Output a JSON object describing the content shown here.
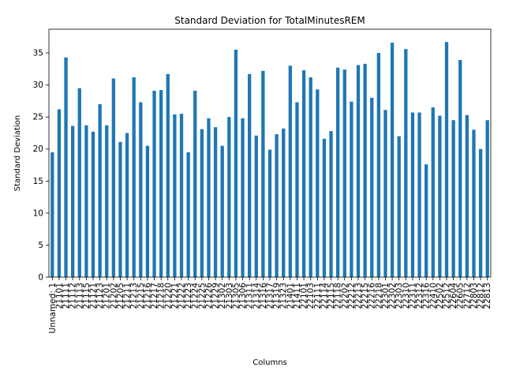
{
  "chart_data": {
    "type": "bar",
    "title": "Standard Deviation for TotalMinutesREM",
    "xlabel": "Columns",
    "ylabel": "Standard Deviation",
    "color": "#1f77b4",
    "categories": [
      "Unnamed: 1",
      "21101",
      "21111",
      "21112",
      "21113",
      "21115",
      "21121",
      "21123",
      "21201",
      "21202",
      "21205",
      "21211",
      "21213",
      "21215",
      "21216",
      "21217",
      "21218",
      "21220",
      "21221",
      "21222",
      "21223",
      "21224",
      "21225",
      "21226",
      "21229",
      "21302",
      "21303",
      "21305",
      "21306",
      "21311",
      "21314",
      "21316",
      "21317",
      "21319",
      "21323",
      "21401",
      "21411",
      "22101",
      "22103",
      "22111",
      "22114",
      "22115",
      "22118",
      "22202",
      "22212",
      "22213",
      "22215",
      "22216",
      "22218",
      "22301",
      "22302",
      "22303",
      "22310",
      "22311",
      "22312",
      "22316",
      "22410",
      "22502",
      "22512",
      "22604",
      "22605",
      "22712",
      "22803",
      "22812",
      "22813"
    ],
    "values": [
      19.5,
      26.2,
      34.3,
      23.6,
      29.5,
      23.7,
      22.7,
      27.0,
      23.7,
      31.0,
      21.1,
      22.5,
      31.2,
      27.3,
      20.5,
      29.1,
      29.2,
      31.7,
      25.4,
      25.5,
      19.5,
      29.1,
      23.1,
      24.8,
      23.4,
      20.5,
      25.0,
      35.5,
      24.8,
      31.7,
      22.1,
      32.2,
      19.9,
      22.3,
      23.2,
      33.0,
      27.3,
      32.3,
      31.2,
      29.3,
      21.6,
      22.8,
      32.7,
      32.4,
      27.4,
      33.1,
      33.3,
      28.0,
      35.0,
      26.1,
      36.6,
      22.0,
      35.6,
      25.7,
      25.7,
      17.6,
      26.5,
      25.2,
      36.7,
      24.5,
      33.9,
      25.3,
      23.0,
      20.0,
      24.5
    ],
    "ylim": [
      0,
      38.7
    ],
    "yticks": [
      0,
      5,
      10,
      15,
      20,
      25,
      30,
      35
    ]
  }
}
